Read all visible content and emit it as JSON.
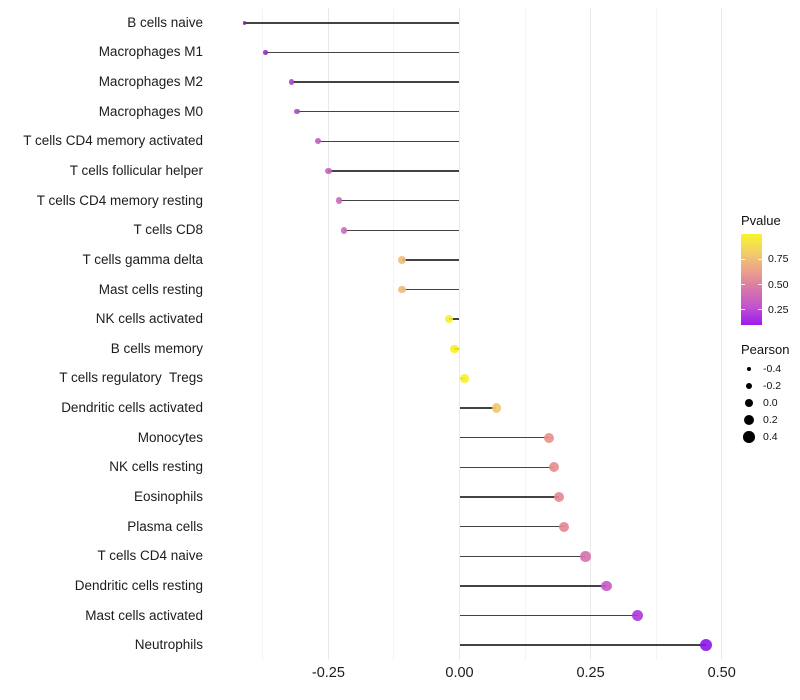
{
  "chart_data": {
    "type": "lollipop",
    "title": "",
    "xlabel": "",
    "ylabel": "",
    "xlim": [
      -0.455,
      0.515
    ],
    "x_ticks": [
      -0.25,
      0.0,
      0.25,
      0.5
    ],
    "x_tick_labels": [
      "-0.25",
      "0.00",
      "0.25",
      "0.50"
    ],
    "x_minor_ticks": [
      -0.375,
      -0.125,
      0.125,
      0.375
    ],
    "grid": "vertical major+minor light gray, no axis lines, white panel",
    "points": [
      {
        "label": "B cells naive",
        "pearson": -0.41,
        "pvalue_approx": 0.13,
        "color": "#8021c8"
      },
      {
        "label": "Macrophages M1",
        "pearson": -0.37,
        "pvalue_approx": 0.17,
        "color": "#9331c6"
      },
      {
        "label": "Macrophages M2",
        "pearson": -0.32,
        "pvalue_approx": 0.22,
        "color": "#a849c5"
      },
      {
        "label": "Macrophages M0",
        "pearson": -0.31,
        "pvalue_approx": 0.23,
        "color": "#aa4cc5"
      },
      {
        "label": "T cells CD4 memory activated",
        "pearson": -0.27,
        "pvalue_approx": 0.3,
        "color": "#bd60c0"
      },
      {
        "label": "T cells follicular helper",
        "pearson": -0.25,
        "pvalue_approx": 0.32,
        "color": "#c266bd"
      },
      {
        "label": "T cells CD4 memory resting",
        "pearson": -0.23,
        "pvalue_approx": 0.35,
        "color": "#c76bbb"
      },
      {
        "label": "T cells CD8",
        "pearson": -0.22,
        "pvalue_approx": 0.36,
        "color": "#c96db9"
      },
      {
        "label": "T cells gamma delta",
        "pearson": -0.11,
        "pvalue_approx": 0.7,
        "color": "#edbe7a"
      },
      {
        "label": "Mast cells resting",
        "pearson": -0.11,
        "pvalue_approx": 0.7,
        "color": "#edbd79"
      },
      {
        "label": "NK cells activated",
        "pearson": -0.02,
        "pvalue_approx": 0.92,
        "color": "#f6ee33"
      },
      {
        "label": "B cells memory",
        "pearson": -0.01,
        "pvalue_approx": 0.97,
        "color": "#f8f222"
      },
      {
        "label": "T cells regulatory  Tregs",
        "pearson": 0.01,
        "pvalue_approx": 0.94,
        "color": "#f6ef30"
      },
      {
        "label": "Dendritic cells activated",
        "pearson": 0.07,
        "pvalue_approx": 0.74,
        "color": "#f0ca69"
      },
      {
        "label": "Monocytes",
        "pearson": 0.17,
        "pvalue_approx": 0.52,
        "color": "#e99186"
      },
      {
        "label": "NK cells resting",
        "pearson": 0.18,
        "pvalue_approx": 0.5,
        "color": "#e78c8b"
      },
      {
        "label": "Eosinophils",
        "pearson": 0.19,
        "pvalue_approx": 0.47,
        "color": "#e58791"
      },
      {
        "label": "Plasma cells",
        "pearson": 0.2,
        "pvalue_approx": 0.46,
        "color": "#e48596"
      },
      {
        "label": "T cells CD4 naive",
        "pearson": 0.24,
        "pvalue_approx": 0.38,
        "color": "#d471ab"
      },
      {
        "label": "Dendritic cells resting",
        "pearson": 0.28,
        "pvalue_approx": 0.28,
        "color": "#c558c9"
      },
      {
        "label": "Mast cells activated",
        "pearson": 0.34,
        "pvalue_approx": 0.2,
        "color": "#ad36da"
      },
      {
        "label": "Neutrophils",
        "pearson": 0.47,
        "pvalue_approx": 0.13,
        "color": "#8d15e9"
      }
    ],
    "legends": {
      "pvalue": {
        "title": "Pvalue",
        "tick_labels": [
          "0.75",
          "0.50",
          "0.25"
        ],
        "tick_values": [
          0.75,
          0.5,
          0.25
        ],
        "value_range_bottom_to_top": [
          0.1,
          1.0
        ],
        "gradient_top_to_bottom": [
          "#f8f42c",
          "#f2cf68",
          "#eba28a",
          "#d877aa",
          "#c153cf",
          "#9d19ee"
        ]
      },
      "pearson": {
        "title": "Pearson",
        "entries": [
          {
            "label": "-0.4",
            "value": -0.4
          },
          {
            "label": "-0.2",
            "value": -0.2
          },
          {
            "label": "0.0",
            "value": 0.0
          },
          {
            "label": "0.2",
            "value": 0.2
          },
          {
            "label": "0.4",
            "value": 0.4
          }
        ],
        "dot_color": "#000000"
      }
    },
    "legend_position": "right"
  }
}
